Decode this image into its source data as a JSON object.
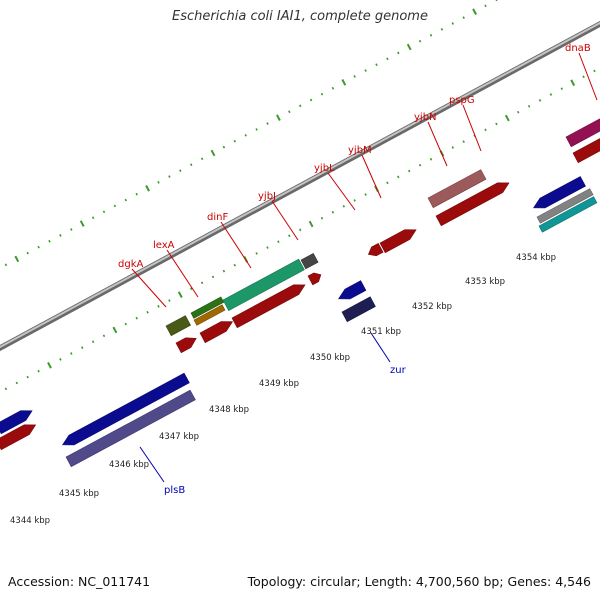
{
  "title": "Escherichia coli IAI1, complete genome",
  "footer": {
    "accession_label": "Accession: NC_011741",
    "summary_label": "Topology: circular; Length: 4,700,560 bp; Genes: 4,546"
  },
  "chart_data": {
    "type": "genome-map",
    "axis_unit": "kbp",
    "axis_ticks": [
      "4344 kbp",
      "4345 kbp",
      "4346 kbp",
      "4347 kbp",
      "4348 kbp",
      "4349 kbp",
      "4350 kbp",
      "4351 kbp",
      "4352 kbp",
      "4353 kbp",
      "4354 kbp"
    ],
    "gene_labels_above": [
      "dgkA",
      "lexA",
      "dinF",
      "yjbJ",
      "yjbL",
      "yjbM",
      "yjbN",
      "pspG",
      "dnaB"
    ],
    "gene_labels_below": [
      "plsB",
      "zur"
    ],
    "colors": {
      "backbone": "#8c8c8c",
      "dots": "#3a9a2a",
      "label_above": "#cc0000",
      "label_below": "#0000b0",
      "red": "#ee1111",
      "blue": "#1111dd",
      "lavender": "#7b72d6",
      "olive": "#6e8a22",
      "green": "#44b022",
      "orange": "#f5a000",
      "teal": "#2ee8a0",
      "gray": "#6a6a6a",
      "navy": "#2e2e80",
      "pink": "#f08a8a",
      "magenta": "#e2187e",
      "cyan": "#18e6e6",
      "silver": "#c8c8c8"
    }
  }
}
